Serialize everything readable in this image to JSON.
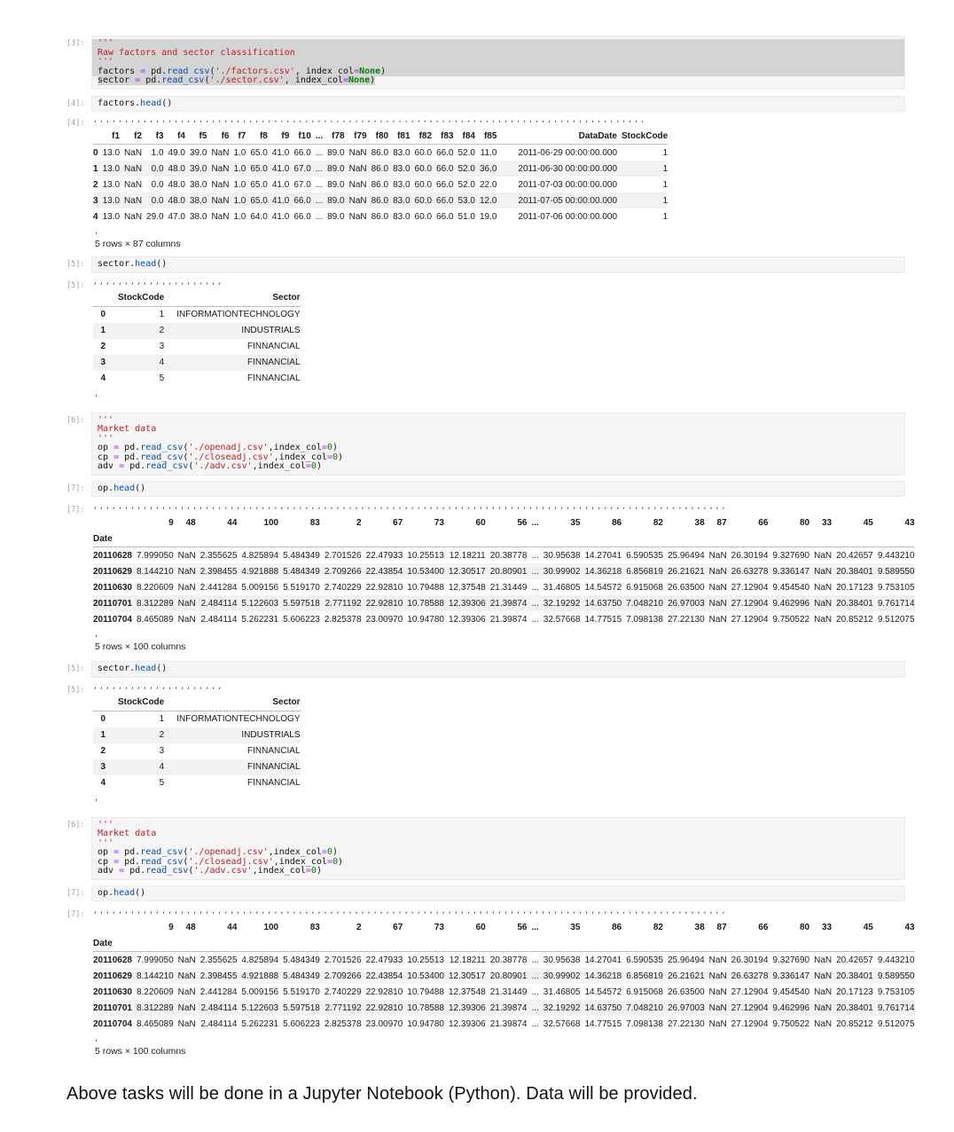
{
  "colors": {
    "str": "#ba2121",
    "func": "#0550ae",
    "op": "#aa22ff",
    "kw": "#008000",
    "num": "#008000",
    "cellbg": "#f5f5f5",
    "sel": "#d4d4d4",
    "stripe": "#f2f2f2",
    "prompt": "#9e9e9e"
  },
  "prompts": {
    "c3": "[3]:",
    "c4": "[4]:",
    "c5": "[5]:",
    "c6": "[6]:",
    "c7": "[7]:"
  },
  "code": {
    "c3": [
      {
        "hl": "full",
        "tokens": [
          {
            "t": "'''",
            "c": "s"
          }
        ]
      },
      {
        "hl": "full",
        "tokens": [
          {
            "t": "Raw factors and sector classification",
            "c": "s"
          }
        ]
      },
      {
        "hl": "full",
        "tokens": [
          {
            "t": "'''",
            "c": "s"
          }
        ]
      },
      {
        "hl": "full",
        "tokens": [
          {
            "t": "factors ",
            "c": "p"
          },
          {
            "t": "=",
            "c": "o"
          },
          {
            "t": " pd.",
            "c": "p"
          },
          {
            "t": "read_csv",
            "c": "f"
          },
          {
            "t": "(",
            "c": "p"
          },
          {
            "t": "'./factors.csv'",
            "c": "s"
          },
          {
            "t": ", index_col",
            "c": "p"
          },
          {
            "t": "=",
            "c": "o"
          },
          {
            "t": "None",
            "c": "k"
          },
          {
            "t": ")",
            "c": "p"
          }
        ]
      },
      {
        "hl": "text",
        "tokens": [
          {
            "t": "sector ",
            "c": "p"
          },
          {
            "t": "=",
            "c": "o"
          },
          {
            "t": " pd.",
            "c": "p"
          },
          {
            "t": "read_csv",
            "c": "f"
          },
          {
            "t": "(",
            "c": "p"
          },
          {
            "t": "'./sector.csv'",
            "c": "s"
          },
          {
            "t": ", index_col",
            "c": "p"
          },
          {
            "t": "=",
            "c": "o"
          },
          {
            "t": "None",
            "c": "k"
          },
          {
            "t": ")",
            "c": "p"
          }
        ]
      }
    ],
    "c4": [
      {
        "tokens": [
          {
            "t": "factors.",
            "c": "p"
          },
          {
            "t": "head",
            "c": "f"
          },
          {
            "t": "()",
            "c": "p"
          }
        ]
      }
    ],
    "c5": [
      {
        "tokens": [
          {
            "t": "sector.",
            "c": "p"
          },
          {
            "t": "head",
            "c": "f"
          },
          {
            "t": "()",
            "c": "p"
          }
        ]
      }
    ],
    "c6": [
      {
        "tokens": [
          {
            "t": "'''",
            "c": "s"
          }
        ]
      },
      {
        "tokens": [
          {
            "t": "Market data",
            "c": "s"
          }
        ]
      },
      {
        "tokens": [
          {
            "t": "'''",
            "c": "s"
          }
        ]
      },
      {
        "tokens": [
          {
            "t": "op ",
            "c": "p"
          },
          {
            "t": "=",
            "c": "o"
          },
          {
            "t": " pd.",
            "c": "p"
          },
          {
            "t": "read_csv",
            "c": "f"
          },
          {
            "t": "(",
            "c": "p"
          },
          {
            "t": "'./openadj.csv'",
            "c": "s"
          },
          {
            "t": ",index_col",
            "c": "p"
          },
          {
            "t": "=",
            "c": "o"
          },
          {
            "t": "0",
            "c": "n"
          },
          {
            "t": ")",
            "c": "p"
          }
        ]
      },
      {
        "tokens": [
          {
            "t": "cp ",
            "c": "p"
          },
          {
            "t": "=",
            "c": "o"
          },
          {
            "t": " pd.",
            "c": "p"
          },
          {
            "t": "read_csv",
            "c": "f"
          },
          {
            "t": "(",
            "c": "p"
          },
          {
            "t": "'./closeadj.csv'",
            "c": "s"
          },
          {
            "t": ",index_col",
            "c": "p"
          },
          {
            "t": "=",
            "c": "o"
          },
          {
            "t": "0",
            "c": "n"
          },
          {
            "t": ")",
            "c": "p"
          }
        ]
      },
      {
        "tokens": [
          {
            "t": "adv ",
            "c": "p"
          },
          {
            "t": "=",
            "c": "o"
          },
          {
            "t": " pd.",
            "c": "p"
          },
          {
            "t": "read_csv",
            "c": "f"
          },
          {
            "t": "(",
            "c": "p"
          },
          {
            "t": "'./adv.csv'",
            "c": "s"
          },
          {
            "t": ",index_col",
            "c": "p"
          },
          {
            "t": "=",
            "c": "o"
          },
          {
            "t": "0",
            "c": "n"
          },
          {
            "t": ")",
            "c": "p"
          }
        ]
      }
    ],
    "c7": [
      {
        "tokens": [
          {
            "t": "op.",
            "c": "p"
          },
          {
            "t": "head",
            "c": "f"
          },
          {
            "t": "()",
            "c": "p"
          }
        ]
      }
    ]
  },
  "dots": {
    "factors": {
      "char": ",",
      "count": 170
    },
    "sector": {
      "char": ",",
      "count": 40
    },
    "op": {
      "char": ",",
      "count": 195
    }
  },
  "tables": {
    "factors": {
      "columns": [
        "",
        "f1",
        "f2",
        "f3",
        "f4",
        "f5",
        "f6",
        "f7",
        "f8",
        "f9",
        "f10",
        "...",
        "f78",
        "f79",
        "f80",
        "f81",
        "f82",
        "f83",
        "f84",
        "f85",
        "DataDate",
        "StockCode"
      ],
      "rows": [
        [
          "0",
          "13.0",
          "NaN",
          "1.0",
          "49.0",
          "39.0",
          "NaN",
          "1.0",
          "65.0",
          "41.0",
          "66.0",
          "...",
          "89.0",
          "NaN",
          "86.0",
          "83.0",
          "60.0",
          "66.0",
          "52.0",
          "11.0",
          "2011-06-29 00:00:00.000",
          "1"
        ],
        [
          "1",
          "13.0",
          "NaN",
          "0.0",
          "48.0",
          "39.0",
          "NaN",
          "1.0",
          "65.0",
          "41.0",
          "67.0",
          "...",
          "89.0",
          "NaN",
          "86.0",
          "83.0",
          "60.0",
          "66.0",
          "52.0",
          "36.0",
          "2011-06-30 00:00:00.000",
          "1"
        ],
        [
          "2",
          "13.0",
          "NaN",
          "0.0",
          "48.0",
          "38.0",
          "NaN",
          "1.0",
          "65.0",
          "41.0",
          "67.0",
          "...",
          "89.0",
          "NaN",
          "86.0",
          "83.0",
          "60.0",
          "66.0",
          "52.0",
          "22.0",
          "2011-07-03 00:00:00.000",
          "1"
        ],
        [
          "3",
          "13.0",
          "NaN",
          "0.0",
          "48.0",
          "38.0",
          "NaN",
          "1.0",
          "65.0",
          "41.0",
          "66.0",
          "...",
          "89.0",
          "NaN",
          "86.0",
          "83.0",
          "60.0",
          "66.0",
          "53.0",
          "12.0",
          "2011-07-05 00:00:00.000",
          "1"
        ],
        [
          "4",
          "13.0",
          "NaN",
          "29.0",
          "47.0",
          "38.0",
          "NaN",
          "1.0",
          "64.0",
          "41.0",
          "66.0",
          "...",
          "89.0",
          "NaN",
          "86.0",
          "83.0",
          "60.0",
          "66.0",
          "51.0",
          "19.0",
          "2011-07-06 00:00:00.000",
          "1"
        ]
      ]
    },
    "sector": {
      "columns": [
        "",
        "StockCode",
        "Sector"
      ],
      "rows": [
        [
          "0",
          "1",
          "INFORMATIONTECHNOLOGY"
        ],
        [
          "1",
          "2",
          "INDUSTRIALS"
        ],
        [
          "2",
          "3",
          "FINNANCIAL"
        ],
        [
          "3",
          "4",
          "FINNANCIAL"
        ],
        [
          "4",
          "5",
          "FINNANCIAL"
        ]
      ]
    },
    "op": {
      "columns": [
        "",
        "9",
        "48",
        "44",
        "100",
        "83",
        "2",
        "67",
        "73",
        "60",
        "56",
        "...",
        "35",
        "86",
        "82",
        "38",
        "87",
        "66",
        "80",
        "33",
        "45",
        "43"
      ],
      "index_name": "Date",
      "rows": [
        [
          "20110628",
          "7.999050",
          "NaN",
          "2.355625",
          "4.825894",
          "5.484349",
          "2.701526",
          "22.47933",
          "10.25513",
          "12.18211",
          "20.38778",
          "...",
          "30.95638",
          "14.27041",
          "6.590535",
          "25.96494",
          "NaN",
          "26.30194",
          "9.327690",
          "NaN",
          "20.42657",
          "9.443210"
        ],
        [
          "20110629",
          "8.144210",
          "NaN",
          "2.398455",
          "4.921888",
          "5.484349",
          "2.709266",
          "22.43854",
          "10.53400",
          "12.30517",
          "20.80901",
          "...",
          "30.99902",
          "14.36218",
          "6.856819",
          "26.21621",
          "NaN",
          "26.63278",
          "9.336147",
          "NaN",
          "20.38401",
          "9.589550"
        ],
        [
          "20110630",
          "8.220609",
          "NaN",
          "2.441284",
          "5.009156",
          "5.519170",
          "2.740229",
          "22.92810",
          "10.79488",
          "12.37548",
          "21.31449",
          "...",
          "31.46805",
          "14.54572",
          "6.915068",
          "26.63500",
          "NaN",
          "27.12904",
          "9.454540",
          "NaN",
          "20.17123",
          "9.753105"
        ],
        [
          "20110701",
          "8.312289",
          "NaN",
          "2.484114",
          "5.122603",
          "5.597518",
          "2.771192",
          "22.92810",
          "10.78588",
          "12.39306",
          "21.39874",
          "...",
          "32.19292",
          "14.63750",
          "7.048210",
          "26.97003",
          "NaN",
          "27.12904",
          "9.462996",
          "NaN",
          "20.38401",
          "9.761714"
        ],
        [
          "20110704",
          "8.465089",
          "NaN",
          "2.484114",
          "5.262231",
          "5.606223",
          "2.825378",
          "23.00970",
          "10.94780",
          "12.39306",
          "21.39874",
          "...",
          "32.57668",
          "14.77515",
          "7.098138",
          "27.22130",
          "NaN",
          "27.12904",
          "9.750522",
          "NaN",
          "20.85212",
          "9.512075"
        ]
      ]
    }
  },
  "shapes": {
    "factors": "5 rows × 87 columns",
    "market": "5 rows × 100 columns"
  },
  "artifacts": {
    "comma": ","
  },
  "footer": {
    "text": "Above tasks will be done in a Jupyter Notebook (Python). Data will be provided."
  }
}
